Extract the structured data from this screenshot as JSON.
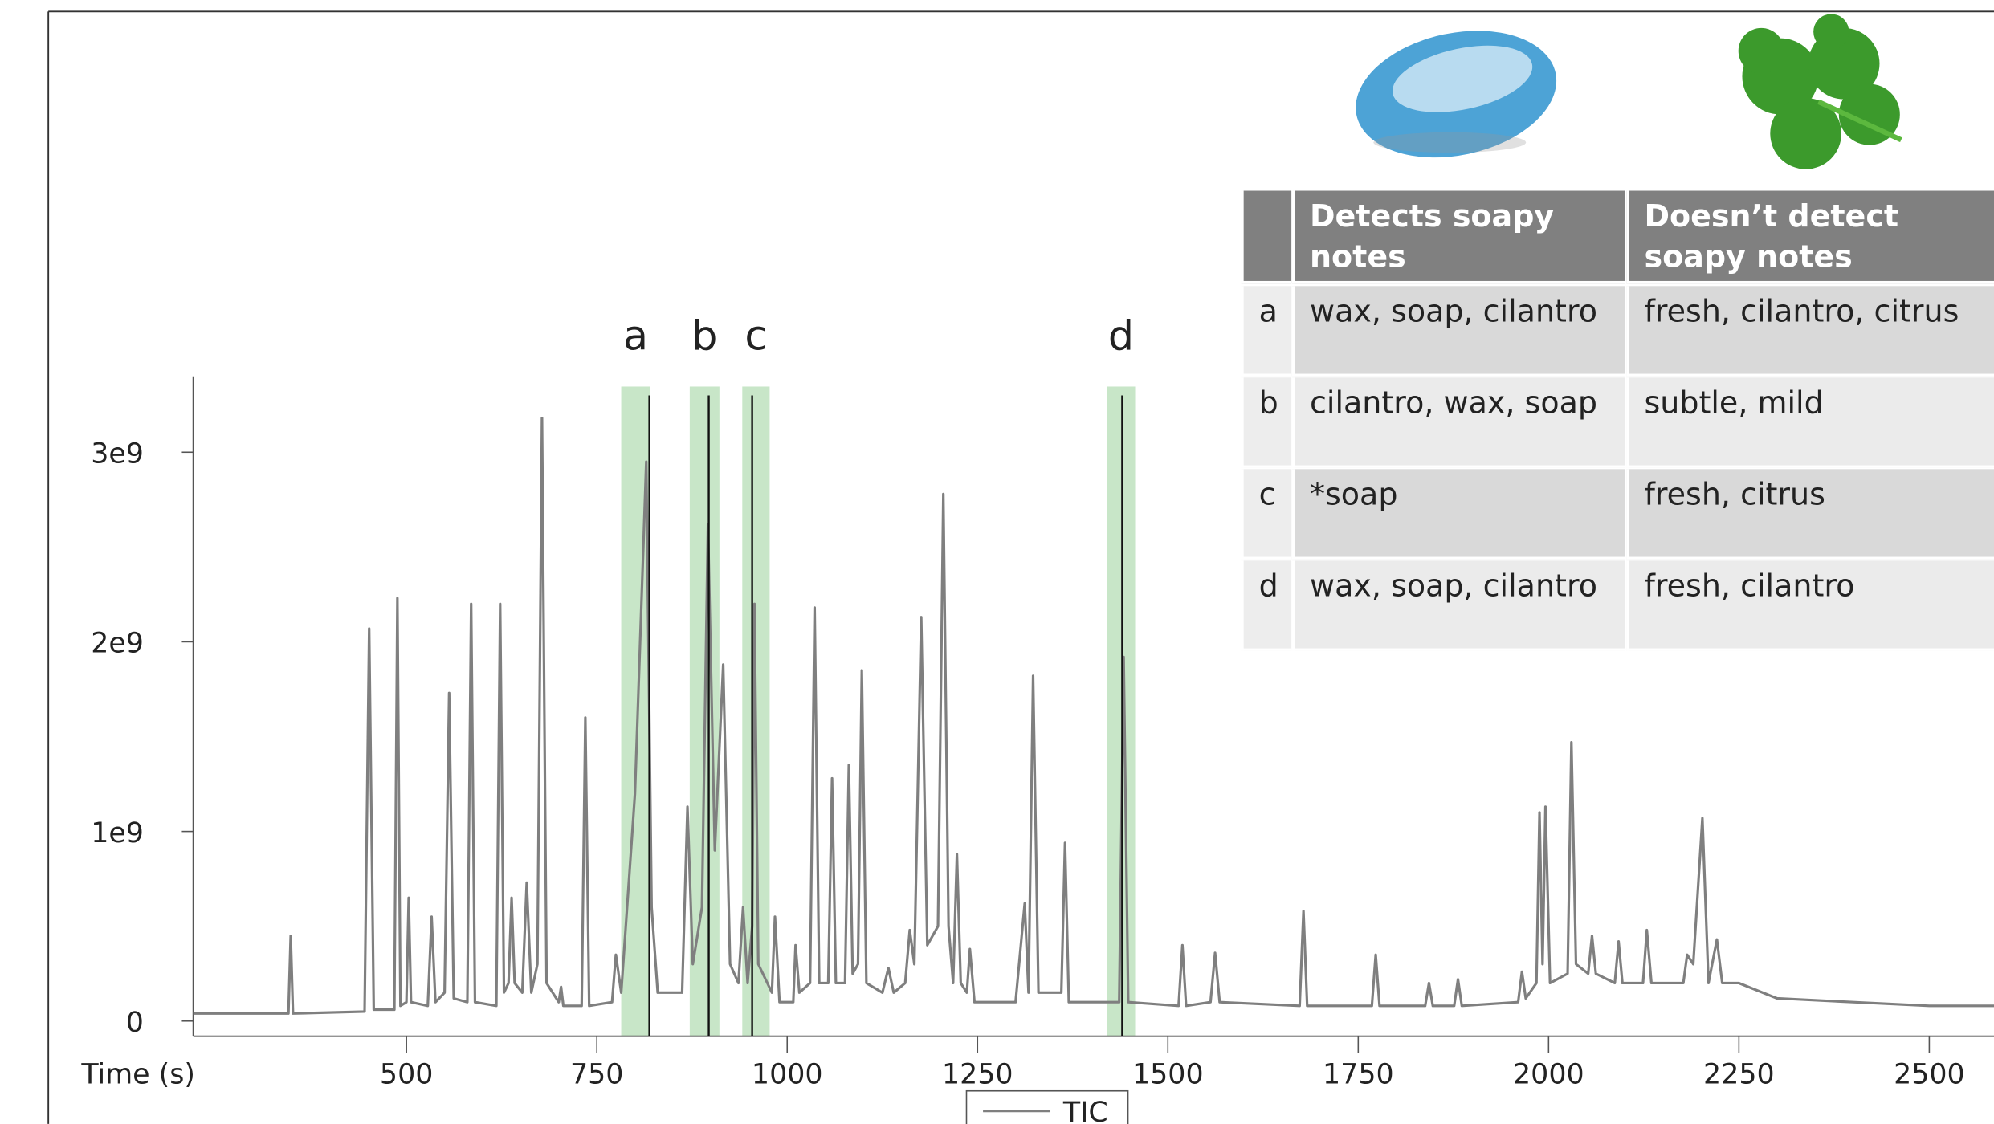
{
  "chart_data": {
    "type": "line",
    "xlabel": "Time (s)",
    "xlim": [
      220,
      2585
    ],
    "ylim": [
      -80000000.0,
      3400000000.0
    ],
    "xticks": [
      500,
      750,
      1000,
      1250,
      1500,
      1750,
      2000,
      2250,
      2500
    ],
    "yticks": [
      0,
      {
        "value": 1000000000.0,
        "label": "1e9"
      },
      {
        "value": 2000000000.0,
        "label": "2e9"
      },
      {
        "value": 3000000000.0,
        "label": "3e9"
      }
    ],
    "x": [
      220,
      300,
      345,
      348,
      351,
      445,
      451,
      457,
      484,
      488,
      492,
      500,
      503,
      506,
      528,
      533,
      538,
      550,
      556,
      562,
      580,
      585,
      590,
      618,
      623,
      628,
      634,
      638,
      642,
      652,
      658,
      664,
      672,
      678,
      684,
      700,
      703,
      706,
      730,
      735,
      740,
      770,
      775,
      782,
      800,
      815,
      822,
      830,
      862,
      869,
      876,
      888,
      896,
      905,
      916,
      925,
      936,
      942,
      948,
      954,
      957,
      962,
      980,
      984,
      990,
      1008,
      1011,
      1016,
      1030,
      1036,
      1042,
      1054,
      1059,
      1064,
      1076,
      1081,
      1086,
      1093,
      1098,
      1104,
      1125,
      1133,
      1140,
      1155,
      1161,
      1167,
      1176,
      1184,
      1198,
      1205,
      1212,
      1218,
      1223,
      1228,
      1236,
      1240,
      1246,
      1300,
      1312,
      1317,
      1323,
      1330,
      1360,
      1365,
      1370,
      1436,
      1442,
      1448,
      1514,
      1519,
      1524,
      1556,
      1562,
      1568,
      1673,
      1678,
      1683,
      1768,
      1773,
      1778,
      1838,
      1843,
      1848,
      1876,
      1881,
      1886,
      1960,
      1965,
      1970,
      1984,
      1988,
      1992,
      1996,
      2002,
      2025,
      2030,
      2036,
      2052,
      2057,
      2062,
      2087,
      2092,
      2097,
      2124,
      2129,
      2135,
      2177,
      2182,
      2190,
      2202,
      2210,
      2221,
      2228,
      2250,
      2300,
      2400,
      2500,
      2585
    ],
    "series": [
      {
        "name": "TIC",
        "color": "#7f7f7f",
        "values": [
          40000000.0,
          40000000.0,
          40000000.0,
          450000000.0,
          40000000.0,
          50000000.0,
          2070000000.0,
          60000000.0,
          60000000.0,
          2230000000.0,
          80000000.0,
          100000000.0,
          650000000.0,
          100000000.0,
          80000000.0,
          550000000.0,
          100000000.0,
          150000000.0,
          1730000000.0,
          120000000.0,
          100000000.0,
          2200000000.0,
          100000000.0,
          80000000.0,
          2200000000.0,
          150000000.0,
          200000000.0,
          650000000.0,
          200000000.0,
          150000000.0,
          730000000.0,
          150000000.0,
          300000000.0,
          3180000000.0,
          200000000.0,
          100000000.0,
          180000000.0,
          80000000.0,
          80000000.0,
          1600000000.0,
          80000000.0,
          100000000.0,
          350000000.0,
          150000000.0,
          1200000000.0,
          2950000000.0,
          600000000.0,
          150000000.0,
          150000000.0,
          1130000000.0,
          300000000.0,
          600000000.0,
          2620000000.0,
          900000000.0,
          1880000000.0,
          300000000.0,
          200000000.0,
          600000000.0,
          200000000.0,
          500000000.0,
          2200000000.0,
          300000000.0,
          150000000.0,
          550000000.0,
          100000000.0,
          100000000.0,
          400000000.0,
          150000000.0,
          200000000.0,
          2180000000.0,
          200000000.0,
          200000000.0,
          1280000000.0,
          200000000.0,
          200000000.0,
          1350000000.0,
          250000000.0,
          300000000.0,
          1850000000.0,
          200000000.0,
          150000000.0,
          280000000.0,
          150000000.0,
          200000000.0,
          480000000.0,
          300000000.0,
          2130000000.0,
          400000000.0,
          500000000.0,
          2780000000.0,
          500000000.0,
          200000000.0,
          880000000.0,
          200000000.0,
          150000000.0,
          380000000.0,
          100000000.0,
          100000000.0,
          620000000.0,
          150000000.0,
          1820000000.0,
          150000000.0,
          150000000.0,
          940000000.0,
          100000000.0,
          100000000.0,
          1920000000.0,
          100000000.0,
          80000000.0,
          400000000.0,
          80000000.0,
          100000000.0,
          360000000.0,
          100000000.0,
          80000000.0,
          580000000.0,
          80000000.0,
          80000000.0,
          350000000.0,
          80000000.0,
          80000000.0,
          200000000.0,
          80000000.0,
          80000000.0,
          220000000.0,
          80000000.0,
          100000000.0,
          260000000.0,
          120000000.0,
          200000000.0,
          1100000000.0,
          300000000.0,
          1130000000.0,
          200000000.0,
          250000000.0,
          1470000000.0,
          300000000.0,
          250000000.0,
          450000000.0,
          250000000.0,
          200000000.0,
          420000000.0,
          200000000.0,
          200000000.0,
          480000000.0,
          200000000.0,
          200000000.0,
          350000000.0,
          300000000.0,
          1070000000.0,
          200000000.0,
          430000000.0,
          200000000.0,
          200000000.0,
          120000000.0,
          100000000.0,
          80000000.0,
          80000000.0
        ]
      }
    ],
    "highlight_color": "#c8e6c8",
    "highlights": [
      {
        "label": "a",
        "start": 782,
        "end": 820,
        "x": 819
      },
      {
        "label": "b",
        "start": 872,
        "end": 911,
        "x": 897
      },
      {
        "label": "c",
        "start": 941,
        "end": 977,
        "x": 954
      },
      {
        "label": "d",
        "start": 1420,
        "end": 1457,
        "x": 1440
      }
    ]
  },
  "table": {
    "header": [
      "Detects soapy notes",
      "Doesn’t detect soapy notes"
    ],
    "rows": [
      [
        "a",
        "wax, soap, cilantro",
        "fresh, cilantro, citrus"
      ],
      [
        "b",
        "cilantro, wax, soap",
        "subtle, mild"
      ],
      [
        "c",
        "*soap",
        "fresh, citrus"
      ],
      [
        "d",
        "wax, soap, cilantro",
        "fresh, cilantro"
      ]
    ]
  }
}
